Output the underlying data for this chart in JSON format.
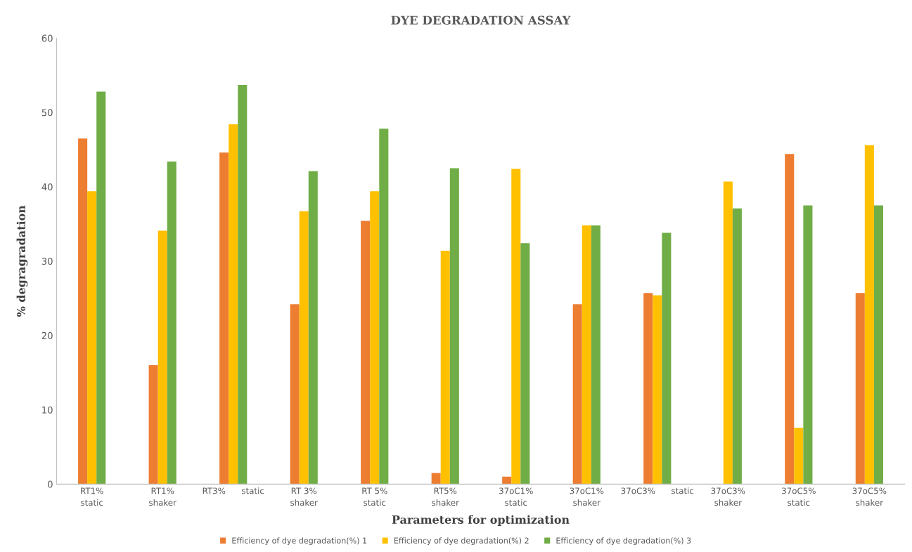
{
  "chart_data": {
    "type": "bar",
    "title": "DYE DEGRADATION ASSAY",
    "xlabel": "Parameters for optimization",
    "ylabel": "% degragradation",
    "categories": [
      "RT1%\nstatic",
      "RT1%\nshaker",
      "RT3%      static",
      "RT 3%\nshaker",
      "RT 5%\nstatic",
      "RT5%\nshaker",
      "37oC1%\nstatic",
      "37oC1%\nshaker",
      "37oC3%      static",
      "37oC3%\nshaker",
      "37oC5%\nstatic",
      "37oC5%\nshaker"
    ],
    "series": [
      {
        "name": "Efficiency of dye degradation(%) 1",
        "color": "#ed7d31",
        "values": [
          46.5,
          16.0,
          44.6,
          24.2,
          35.4,
          1.5,
          1.0,
          24.2,
          25.7,
          null,
          44.4,
          25.7
        ]
      },
      {
        "name": "Efficiency of dye degradation(%) 2",
        "color": "#ffc000",
        "values": [
          39.4,
          34.1,
          48.4,
          36.7,
          39.4,
          31.4,
          42.4,
          34.8,
          25.4,
          40.7,
          7.6,
          45.6
        ]
      },
      {
        "name": "Efficiency of dye degradation(%) 3",
        "color": "#70ad47",
        "values": [
          52.8,
          43.4,
          53.7,
          42.1,
          47.8,
          42.5,
          32.4,
          34.8,
          33.8,
          37.1,
          37.5,
          37.5
        ]
      }
    ],
    "ylim": [
      0,
      60
    ],
    "yticks": [
      0,
      10,
      20,
      30,
      40,
      50,
      60
    ],
    "grid": false,
    "legend": "bottom"
  }
}
